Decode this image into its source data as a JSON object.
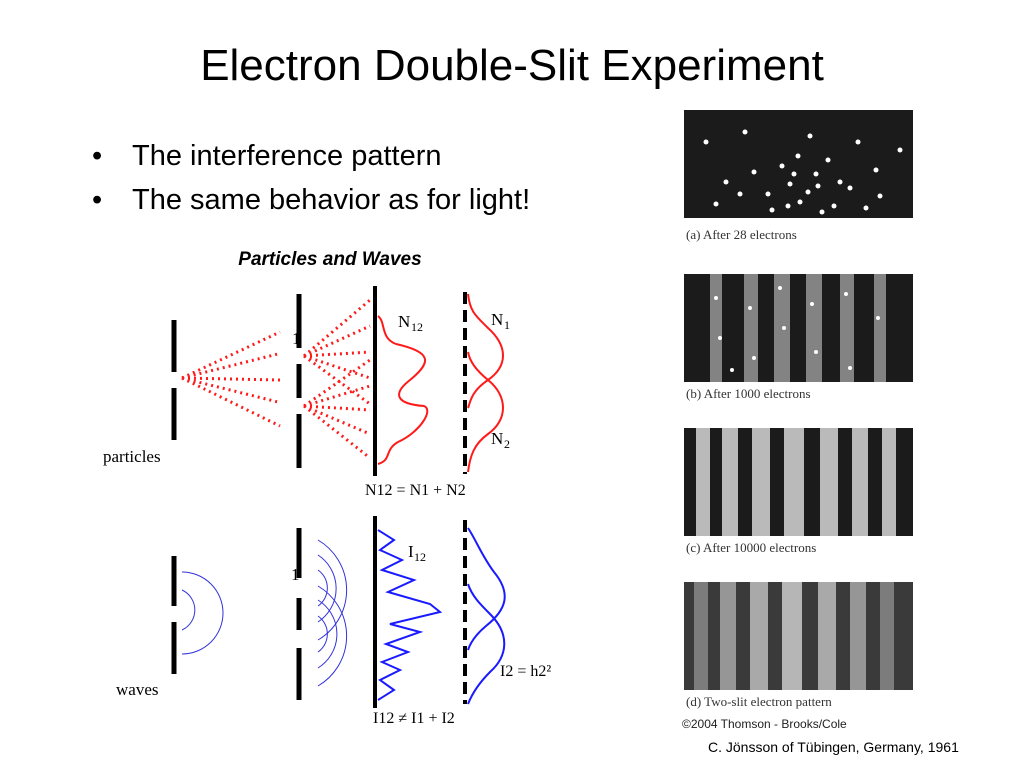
{
  "slide": {
    "title": "Electron Double-Slit Experiment",
    "bullets": [
      "The interference pattern",
      "The same behavior as for light!"
    ],
    "credit": "C. Jönsson of Tübingen, Germany, 1961"
  },
  "diagram": {
    "heading": "Particles and Waves",
    "particles_label": "particles",
    "waves_label": "waves",
    "slit_marker_top": "1",
    "slit_marker_bottom": "1",
    "n12_label": "N",
    "n12_sub": "12",
    "n1_label": "N",
    "n1_sub": "1",
    "n2_label": "N",
    "n2_sub": "2",
    "particle_equation": "N12 = N1 + N2",
    "i12_label": "I",
    "i12_sub": "12",
    "wave_single_equation": "I2 = h2²",
    "wave_equation": "I12 ≠ I1 + I2",
    "colors": {
      "particle": "#ff1a1a",
      "wave": "#1a1aff",
      "barrier": "#000000"
    }
  },
  "photos": {
    "captions": [
      "(a) After 28 electrons",
      "(b) After 1000 electrons",
      "(c) After 10000 electrons",
      "(d) Two-slit electron pattern"
    ],
    "copyright": "©2004 Thomson - Brooks/Cole"
  }
}
